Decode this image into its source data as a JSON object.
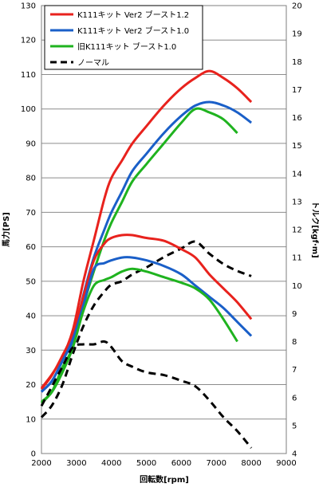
{
  "chart_data": {
    "type": "line",
    "xlabel": "回転数[rpm]",
    "ylabel_left": "馬力[PS]",
    "ylabel_right": "トルク[kgf·m]",
    "xlim": [
      2000,
      9000
    ],
    "xticks": [
      "2000",
      "3000",
      "4000",
      "5000",
      "6000",
      "7000",
      "8000",
      "9000"
    ],
    "ylim_left": [
      0,
      130
    ],
    "yticks_left": [
      "0",
      "10",
      "20",
      "30",
      "40",
      "50",
      "60",
      "70",
      "80",
      "90",
      "100",
      "110",
      "120",
      "130"
    ],
    "ylim_right": [
      4,
      20
    ],
    "yticks_right": [
      "4",
      "5",
      "6",
      "7",
      "8",
      "9",
      "10",
      "11",
      "12",
      "13",
      "14",
      "15",
      "16",
      "17",
      "18",
      "19",
      "20"
    ],
    "grid": "horizontal",
    "legend_position": "top-left",
    "legend": [
      {
        "label": "K111キット Ver2 ブースト1.2",
        "color": "#e8221d",
        "dash": "solid"
      },
      {
        "label": "K111キット Ver2 ブースト1.0",
        "color": "#1a5fc8",
        "dash": "solid"
      },
      {
        "label": "旧K111キット ブースト1.0",
        "color": "#1fb31f",
        "dash": "solid"
      },
      {
        "label": "ノーマル",
        "color": "#000000",
        "dash": "dashed"
      }
    ],
    "series": [
      {
        "label_index": 0,
        "axis": "left",
        "color": "#e8221d",
        "dash": "solid",
        "x": [
          2000,
          2300,
          2600,
          2900,
          3200,
          3500,
          3800,
          4000,
          4300,
          4600,
          5000,
          5500,
          6000,
          6400,
          6800,
          7200,
          7600,
          8000
        ],
        "y": [
          19,
          23,
          28,
          36,
          50,
          62,
          74,
          80,
          85,
          90,
          95,
          101,
          106,
          109,
          111,
          109,
          106,
          102
        ]
      },
      {
        "label_index": 1,
        "axis": "left",
        "color": "#1a5fc8",
        "dash": "solid",
        "x": [
          2000,
          2300,
          2600,
          2900,
          3200,
          3500,
          3800,
          4000,
          4300,
          4600,
          5000,
          5500,
          6000,
          6400,
          6800,
          7200,
          7600,
          8000
        ],
        "y": [
          18,
          21,
          27,
          33,
          46,
          57,
          65,
          70,
          76,
          82,
          87,
          93,
          98,
          101,
          102,
          101,
          99,
          96
        ]
      },
      {
        "label_index": 2,
        "axis": "left",
        "color": "#1fb31f",
        "dash": "solid",
        "x": [
          2000,
          2300,
          2600,
          2900,
          3200,
          3500,
          3800,
          4000,
          4300,
          4600,
          5000,
          5500,
          6000,
          6400,
          6800,
          7200,
          7600
        ],
        "y": [
          15,
          18,
          25,
          31,
          43,
          53,
          62,
          67,
          73,
          79,
          84,
          90,
          96,
          100,
          99,
          97,
          93
        ]
      },
      {
        "label_index": 3,
        "axis": "left",
        "color": "#000000",
        "dash": "dashed",
        "x": [
          2000,
          2300,
          2600,
          2900,
          3200,
          3500,
          3800,
          4000,
          4300,
          4600,
          5000,
          5500,
          6000,
          6400,
          6800,
          7200,
          7600,
          8000
        ],
        "y": [
          10.5,
          14,
          20,
          29,
          37,
          43,
          47,
          49,
          50,
          52,
          54,
          57,
          59.5,
          61.5,
          58,
          55,
          53,
          51.5
        ]
      },
      {
        "label_index": 0,
        "axis": "right",
        "color": "#e8221d",
        "dash": "solid",
        "x": [
          2000,
          2300,
          2600,
          2900,
          3200,
          3500,
          3800,
          4000,
          4300,
          4600,
          5000,
          5500,
          6000,
          6400,
          6800,
          7200,
          7600,
          8000
        ],
        "y": [
          6.3,
          6.8,
          7.5,
          8.3,
          9.6,
          10.9,
          11.5,
          11.7,
          11.8,
          11.8,
          11.7,
          11.6,
          11.3,
          11.0,
          10.4,
          9.9,
          9.4,
          8.8
        ]
      },
      {
        "label_index": 1,
        "axis": "right",
        "color": "#1a5fc8",
        "dash": "solid",
        "x": [
          2000,
          2300,
          2600,
          2900,
          3200,
          3500,
          3800,
          4000,
          4300,
          4600,
          5000,
          5500,
          6000,
          6400,
          6800,
          7200,
          7600,
          8000
        ],
        "y": [
          6.2,
          6.6,
          7.3,
          8.1,
          9.3,
          10.6,
          10.8,
          10.9,
          11.0,
          11.0,
          10.9,
          10.7,
          10.4,
          10.0,
          9.6,
          9.2,
          8.7,
          8.2
        ]
      },
      {
        "label_index": 2,
        "axis": "right",
        "color": "#1fb31f",
        "dash": "solid",
        "x": [
          2000,
          2300,
          2600,
          2900,
          3200,
          3500,
          3800,
          4000,
          4300,
          4600,
          5000,
          5500,
          6000,
          6400,
          6800,
          7200,
          7600
        ],
        "y": [
          5.8,
          6.2,
          6.9,
          7.8,
          9.1,
          10.0,
          10.2,
          10.3,
          10.5,
          10.6,
          10.5,
          10.3,
          10.1,
          9.9,
          9.5,
          8.8,
          8.0
        ]
      },
      {
        "label_index": 3,
        "axis": "right",
        "color": "#000000",
        "dash": "dashed",
        "x": [
          2000,
          2300,
          2600,
          2900,
          3200,
          3500,
          3800,
          4000,
          4300,
          4600,
          5000,
          5500,
          6000,
          6400,
          6800,
          7200,
          7600,
          8000
        ],
        "y": [
          5.7,
          6.4,
          7.1,
          7.8,
          7.9,
          7.9,
          8.0,
          7.8,
          7.3,
          7.1,
          6.9,
          6.8,
          6.6,
          6.4,
          5.9,
          5.3,
          4.8,
          4.2
        ]
      }
    ]
  }
}
